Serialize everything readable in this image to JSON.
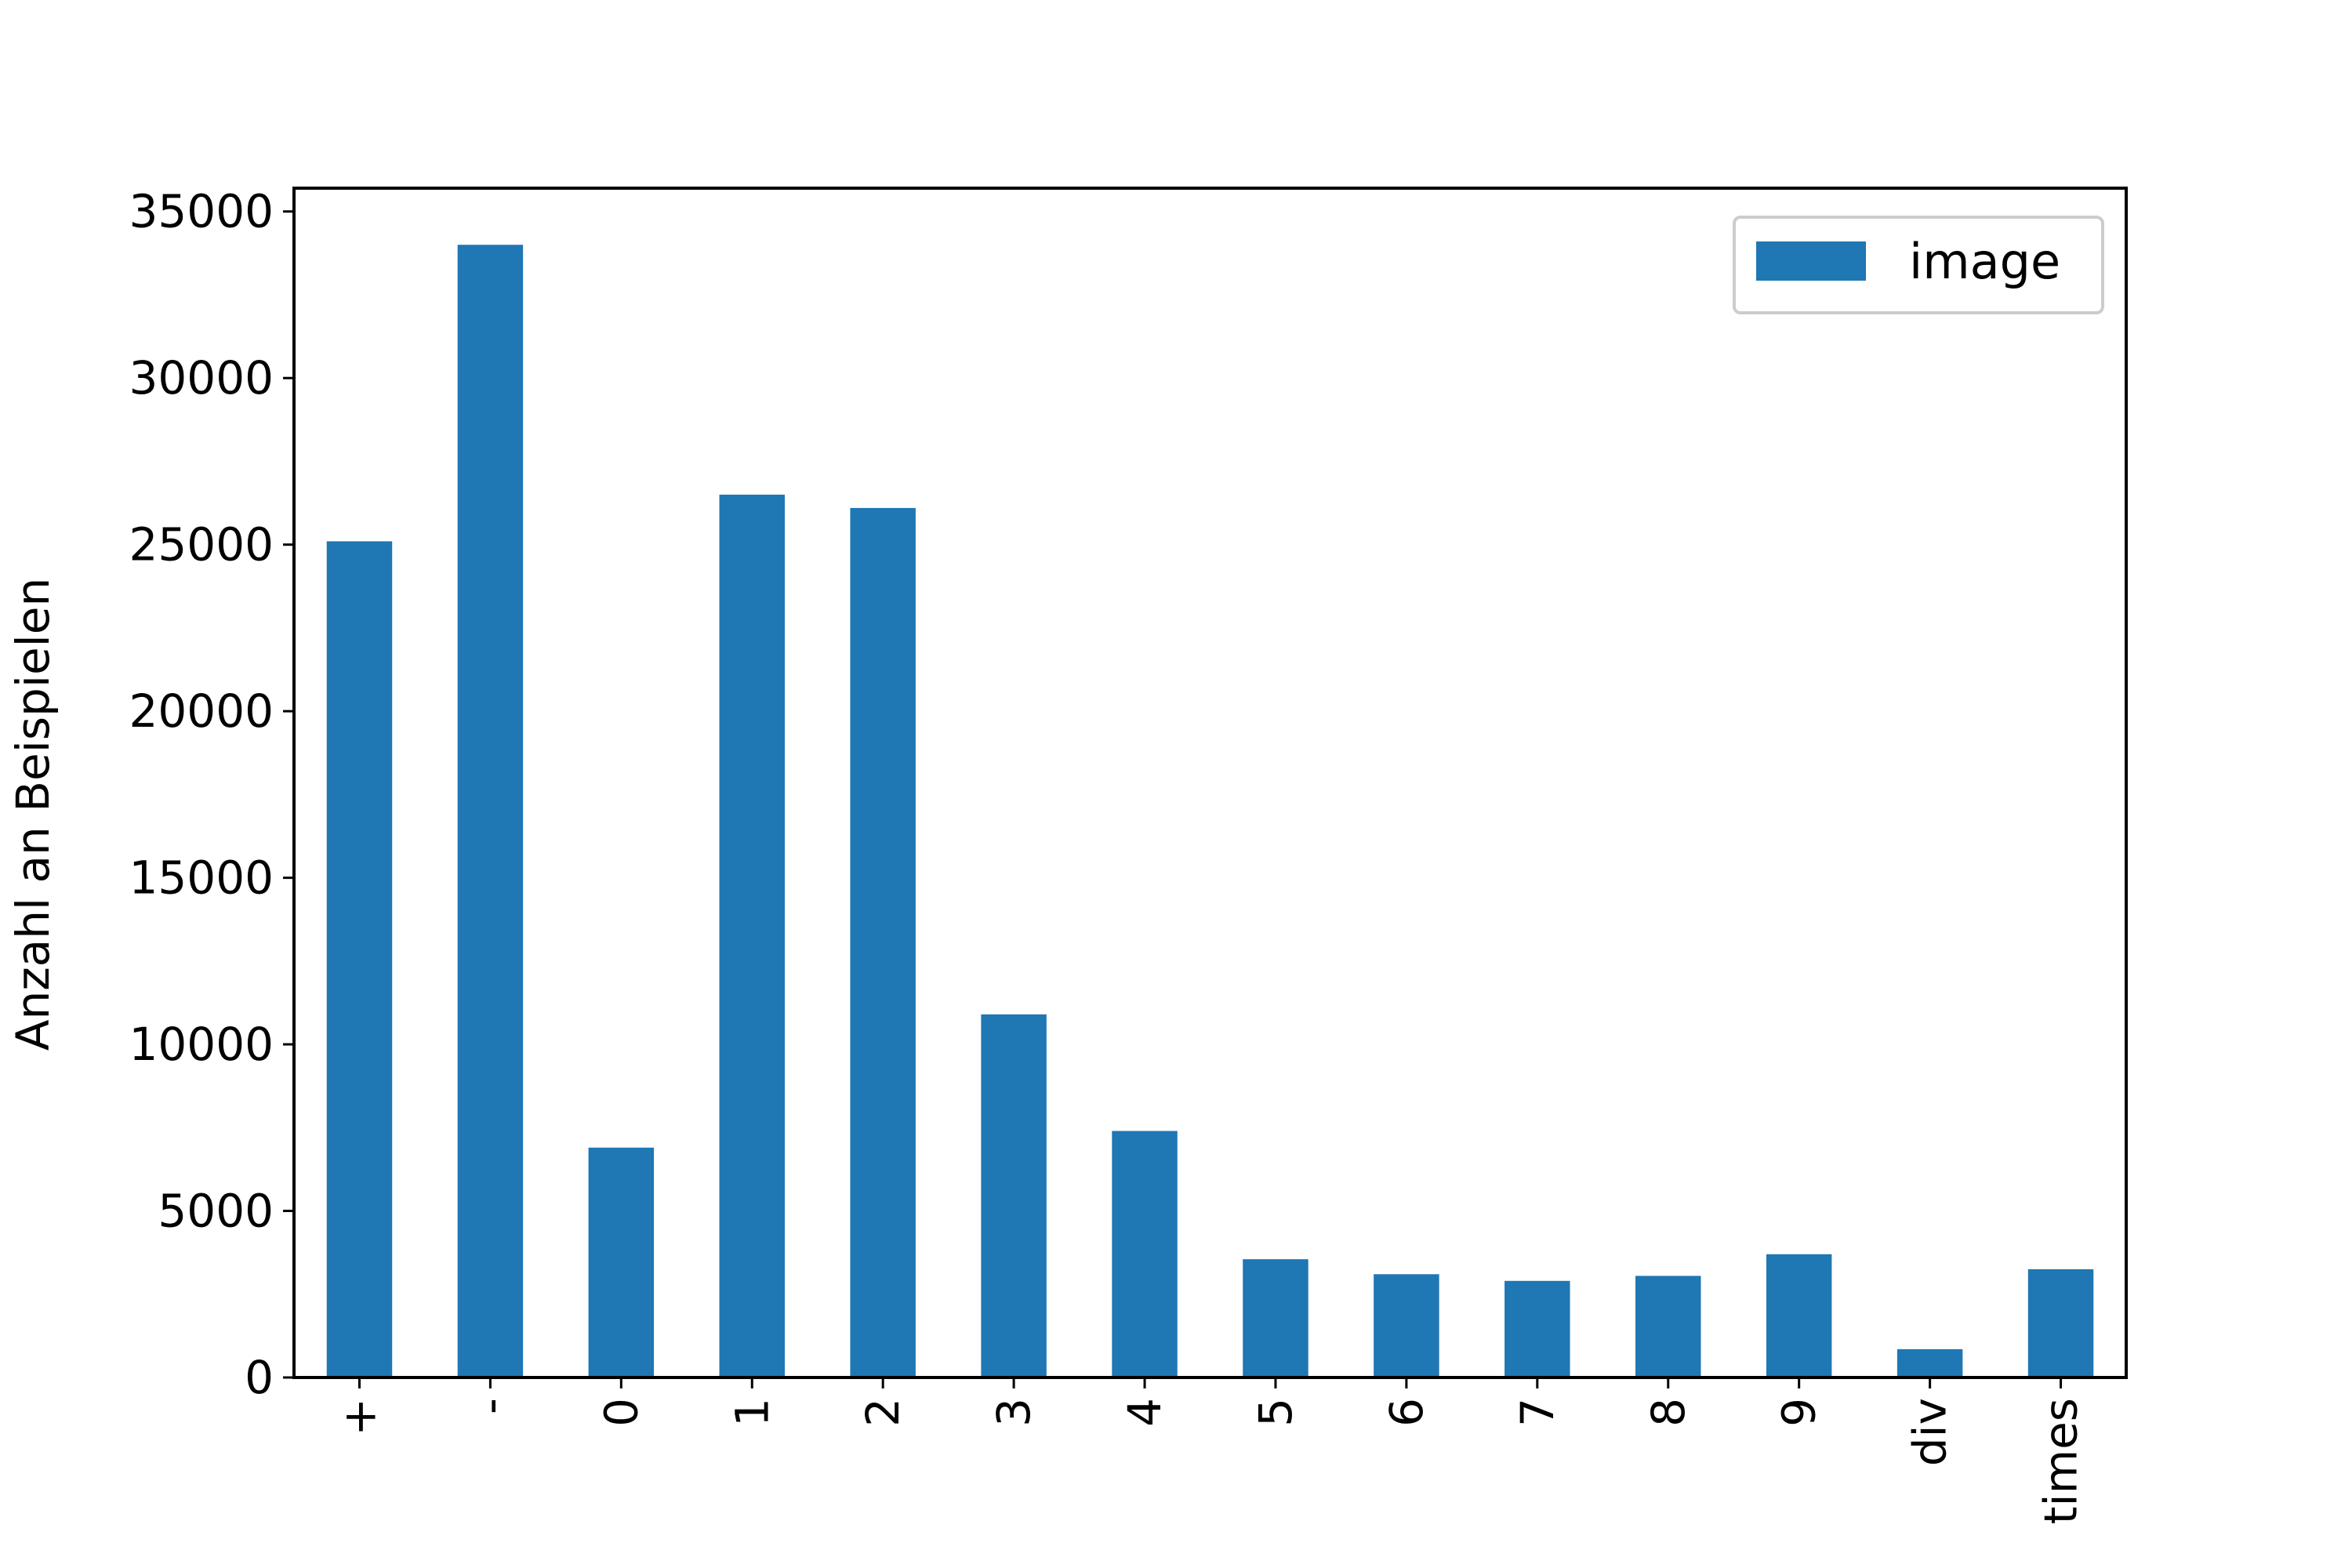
{
  "chart_data": {
    "type": "bar",
    "title": "",
    "xlabel": "",
    "ylabel": "Anzahl an Beispielen",
    "categories": [
      "+",
      "-",
      "0",
      "1",
      "2",
      "3",
      "4",
      "5",
      "6",
      "7",
      "8",
      "9",
      "div",
      "times"
    ],
    "series": [
      {
        "name": "image",
        "color": "#1f77b4",
        "values": [
          25100,
          34000,
          6900,
          26500,
          26100,
          10900,
          7400,
          3550,
          3100,
          2900,
          3050,
          3700,
          850,
          3250
        ]
      }
    ],
    "ylim": [
      0,
      35700
    ],
    "yticks": [
      0,
      5000,
      10000,
      15000,
      20000,
      25000,
      30000,
      35000
    ],
    "legend": "top-right",
    "grid": false,
    "x_tick_rotation": 90
  }
}
